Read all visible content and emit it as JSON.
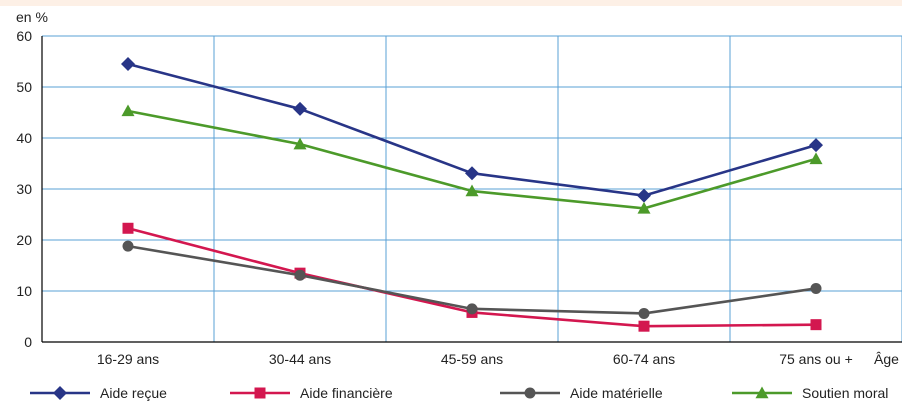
{
  "chart_data": {
    "type": "line",
    "ylabel": "en %",
    "xlabel": "Âge",
    "categories": [
      "16-29 ans",
      "30-44 ans",
      "45-59 ans",
      "60-74 ans",
      "75 ans ou +"
    ],
    "ylim": [
      0,
      60
    ],
    "yticks": [
      0,
      10,
      20,
      30,
      40,
      50,
      60
    ],
    "grid": true,
    "legend_position": "bottom",
    "series": [
      {
        "name": "Aide reçue",
        "values": [
          54.5,
          45.7,
          33.1,
          28.7,
          38.6
        ],
        "color": "#283587",
        "marker": "diamond"
      },
      {
        "name": "Aide financière",
        "values": [
          22.3,
          13.5,
          5.8,
          3.1,
          3.4
        ],
        "color": "#d3174f",
        "marker": "square"
      },
      {
        "name": "Aide matérielle",
        "values": [
          18.8,
          13.1,
          6.5,
          5.6,
          10.5
        ],
        "color": "#555555",
        "marker": "circle"
      },
      {
        "name": "Soutien moral",
        "values": [
          45.3,
          38.8,
          29.6,
          26.2,
          35.9
        ],
        "color": "#4c9a2a",
        "marker": "triangle"
      }
    ]
  }
}
